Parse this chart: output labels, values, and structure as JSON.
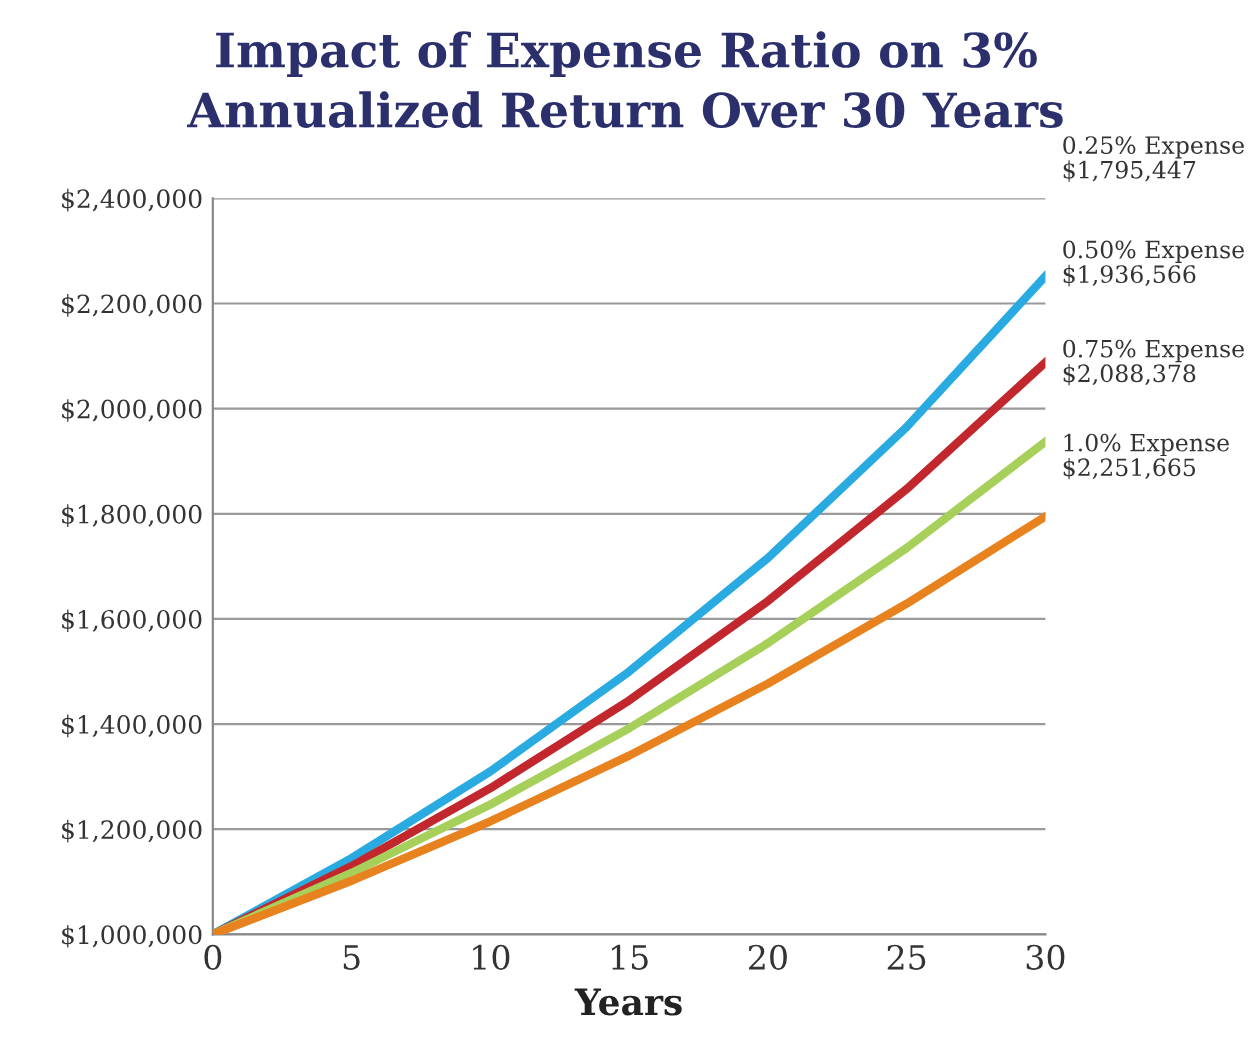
{
  "chart_data": {
    "type": "line",
    "title": "Impact of Expense Ratio on 3%\nAnnualized Return Over 30 Years",
    "xlabel": "Years",
    "x": [
      0,
      5,
      10,
      15,
      20,
      25,
      30
    ],
    "series": [
      {
        "color": "#29abe2",
        "values": [
          1000000,
          1145000,
          1310000,
          1500000,
          1716000,
          1965000,
          2252000
        ]
      },
      {
        "color": "#c1272d",
        "values": [
          1000000,
          1130000,
          1278000,
          1445000,
          1634000,
          1847000,
          2088000
        ]
      },
      {
        "color": "#a6d05a",
        "values": [
          1000000,
          1117000,
          1247000,
          1392000,
          1554000,
          1735000,
          1937000
        ]
      },
      {
        "color": "#e8821e",
        "values": [
          1000000,
          1102000,
          1215000,
          1340000,
          1477000,
          1629000,
          1795000
        ]
      }
    ],
    "xlim": [
      0,
      30
    ],
    "xticks": [
      0,
      5,
      10,
      15,
      20,
      25,
      30
    ],
    "ylim": [
      1000000,
      2400000
    ],
    "yticks": [
      {
        "value": 1000000,
        "label": "$1,000,000"
      },
      {
        "value": 1200000,
        "label": "$1,200,000"
      },
      {
        "value": 1400000,
        "label": "$1,400,000"
      },
      {
        "value": 1600000,
        "label": "$1,600,000"
      },
      {
        "value": 1800000,
        "label": "$1,800,000"
      },
      {
        "value": 2000000,
        "label": "$2,000,000"
      },
      {
        "value": 2200000,
        "label": "$2,200,000"
      },
      {
        "value": 2400000,
        "label": "$2,400,000"
      }
    ],
    "grid": "y",
    "marker": "none",
    "line_style": "solid",
    "annotations": [
      "0.25% Expense\n$1,795,447",
      "0.50% Expense\n$1,936,566",
      "0.75% Expense\n$2,088,378",
      "1.0% Expense\n$2,251,665"
    ]
  }
}
